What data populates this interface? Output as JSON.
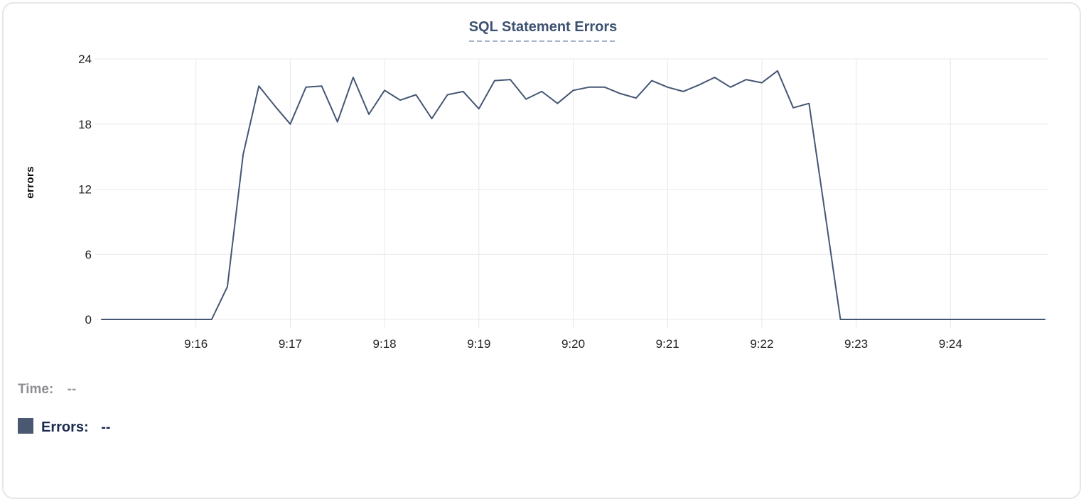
{
  "chart": {
    "title": "SQL Statement Errors",
    "y_label": "errors"
  },
  "readout": {
    "time_label": "Time:",
    "time_value": "--",
    "errors_label": "Errors:",
    "errors_value": "--"
  },
  "chart_data": {
    "type": "line",
    "title": "SQL Statement Errors",
    "xlabel": "",
    "ylabel": "errors",
    "series_name": "Errors",
    "x_start": "9:15:00",
    "x_end": "9:25:00",
    "interval_seconds": 10,
    "ylim": [
      0,
      24
    ],
    "y_ticks": [
      0,
      6,
      12,
      18,
      24
    ],
    "x_ticks": [
      {
        "label": "9:16",
        "seconds": 60
      },
      {
        "label": "9:17",
        "seconds": 120
      },
      {
        "label": "9:18",
        "seconds": 180
      },
      {
        "label": "9:19",
        "seconds": 240
      },
      {
        "label": "9:20",
        "seconds": 300
      },
      {
        "label": "9:21",
        "seconds": 360
      },
      {
        "label": "9:22",
        "seconds": 420
      },
      {
        "label": "9:23",
        "seconds": 480
      },
      {
        "label": "9:24",
        "seconds": 540
      }
    ],
    "grid": true,
    "legend_position": "bottom-left",
    "line_color": "#455674",
    "swatch_color": "#4a5971",
    "title_color": "#3d5271",
    "grid_color": "#e8e8ea",
    "tick_label_color": "#1f2023",
    "times": [
      "9:15:00",
      "9:15:10",
      "9:15:20",
      "9:15:30",
      "9:15:40",
      "9:15:50",
      "9:16:00",
      "9:16:10",
      "9:16:20",
      "9:16:30",
      "9:16:40",
      "9:16:50",
      "9:17:00",
      "9:17:10",
      "9:17:20",
      "9:17:30",
      "9:17:40",
      "9:17:50",
      "9:18:00",
      "9:18:10",
      "9:18:20",
      "9:18:30",
      "9:18:40",
      "9:18:50",
      "9:19:00",
      "9:19:10",
      "9:19:20",
      "9:19:30",
      "9:19:40",
      "9:19:50",
      "9:20:00",
      "9:20:10",
      "9:20:20",
      "9:20:30",
      "9:20:40",
      "9:20:50",
      "9:21:00",
      "9:21:10",
      "9:21:20",
      "9:21:30",
      "9:21:40",
      "9:21:50",
      "9:22:00",
      "9:22:10",
      "9:22:20",
      "9:22:30",
      "9:22:40",
      "9:22:50",
      "9:23:00",
      "9:23:10",
      "9:23:20",
      "9:23:30",
      "9:23:40",
      "9:23:50",
      "9:24:00",
      "9:24:10",
      "9:24:20",
      "9:24:30",
      "9:24:40",
      "9:24:50",
      "9:25:00"
    ],
    "values": [
      0,
      0,
      0,
      0,
      0,
      0,
      0,
      0,
      3,
      15.2,
      21.5,
      19.7,
      18,
      21.4,
      21.5,
      18.2,
      22.3,
      18.9,
      21.1,
      20.2,
      20.7,
      18.5,
      20.7,
      21,
      19.4,
      22,
      22.1,
      20.3,
      21,
      19.9,
      21.1,
      21.4,
      21.4,
      20.8,
      20.4,
      22,
      21.4,
      21,
      21.6,
      22.3,
      21.4,
      22.1,
      21.8,
      22.9,
      19.5,
      19.9,
      10,
      0,
      0,
      0,
      0,
      0,
      0,
      0,
      0,
      0,
      0,
      0,
      0,
      0,
      0
    ]
  }
}
